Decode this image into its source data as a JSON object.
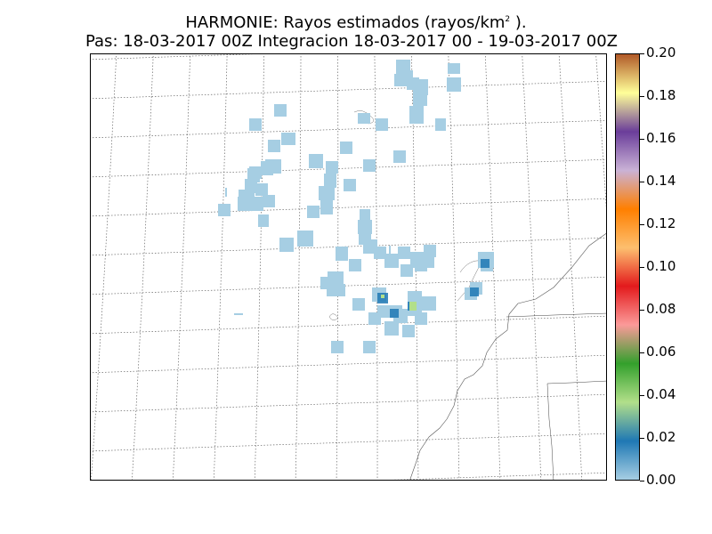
{
  "title": {
    "line1_prefix": "HARMONIE: Rayos estimados  (rayos/km",
    "line1_sup": "2",
    "line1_suffix": " ).",
    "line2": "Pas: 18-03-2017 00Z Integracion 18-03-2017 00 - 19-03-2017 00Z"
  },
  "colorbar": {
    "labels": [
      "0.20",
      "0.18",
      "0.16",
      "0.14",
      "0.12",
      "0.10",
      "0.08",
      "0.06",
      "0.04",
      "0.02",
      "0.00"
    ],
    "min": 0.0,
    "max": 0.2,
    "colors": [
      "#a6cee3",
      "#1f78b4",
      "#b2df8a",
      "#33a02c",
      "#fb9a99",
      "#e31a1c",
      "#fdbf6f",
      "#ff7f00",
      "#cab2d6",
      "#6a3d9a",
      "#ffff99",
      "#b15928"
    ]
  },
  "map": {
    "gridlines": "dotted",
    "lightning_color_low": "#a6cee3",
    "lightning_color_mid": "#1f78b4",
    "lightning_color_high": "#b2df8a"
  }
}
